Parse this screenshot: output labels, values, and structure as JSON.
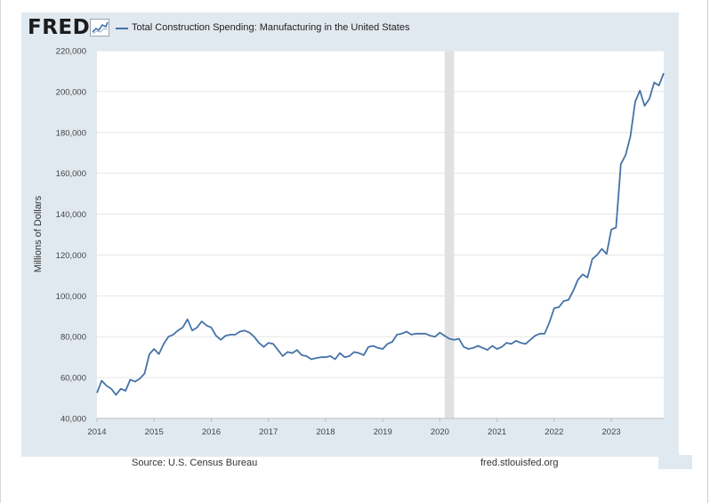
{
  "header": {
    "logo": "FRED",
    "logo_icon": "line-graph-icon",
    "series_title": "Total Construction Spending: Manufacturing in the United States"
  },
  "footer": {
    "source": "Source: U.S. Census Bureau",
    "site": "fred.stlouisfed.org"
  },
  "colors": {
    "line": "#4572a7",
    "panel": "#e1e9f0",
    "recession": "#e1e1e1"
  },
  "chart_data": {
    "type": "line",
    "title": "Total Construction Spending: Manufacturing in the United States",
    "xlabel": "",
    "ylabel": "Millions of Dollars",
    "ylim": [
      40000,
      220000
    ],
    "xlim": [
      2014.0,
      2023.917
    ],
    "grid": true,
    "yticks": [
      40000,
      60000,
      80000,
      100000,
      120000,
      140000,
      160000,
      180000,
      200000,
      220000
    ],
    "ytick_labels": [
      "40,000",
      "60,000",
      "80,000",
      "100,000",
      "120,000",
      "140,000",
      "160,000",
      "180,000",
      "200,000",
      "220,000"
    ],
    "xticks": [
      2014,
      2015,
      2016,
      2017,
      2018,
      2019,
      2020,
      2021,
      2022,
      2023
    ],
    "xtick_labels": [
      "2014",
      "2015",
      "2016",
      "2017",
      "2018",
      "2019",
      "2020",
      "2021",
      "2022",
      "2023"
    ],
    "recession": [
      2020.0833,
      2020.25
    ],
    "series": [
      {
        "name": "Total Construction Spending: Manufacturing in the United States",
        "x": [
          2014.0,
          2014.083,
          2014.167,
          2014.25,
          2014.333,
          2014.417,
          2014.5,
          2014.583,
          2014.667,
          2014.75,
          2014.833,
          2014.917,
          2015.0,
          2015.083,
          2015.167,
          2015.25,
          2015.333,
          2015.417,
          2015.5,
          2015.583,
          2015.667,
          2015.75,
          2015.833,
          2015.917,
          2016.0,
          2016.083,
          2016.167,
          2016.25,
          2016.333,
          2016.417,
          2016.5,
          2016.583,
          2016.667,
          2016.75,
          2016.833,
          2016.917,
          2017.0,
          2017.083,
          2017.167,
          2017.25,
          2017.333,
          2017.417,
          2017.5,
          2017.583,
          2017.667,
          2017.75,
          2017.833,
          2017.917,
          2018.0,
          2018.083,
          2018.167,
          2018.25,
          2018.333,
          2018.417,
          2018.5,
          2018.583,
          2018.667,
          2018.75,
          2018.833,
          2018.917,
          2019.0,
          2019.083,
          2019.167,
          2019.25,
          2019.333,
          2019.417,
          2019.5,
          2019.583,
          2019.667,
          2019.75,
          2019.833,
          2019.917,
          2020.0,
          2020.083,
          2020.167,
          2020.25,
          2020.333,
          2020.417,
          2020.5,
          2020.583,
          2020.667,
          2020.75,
          2020.833,
          2020.917,
          2021.0,
          2021.083,
          2021.167,
          2021.25,
          2021.333,
          2021.417,
          2021.5,
          2021.583,
          2021.667,
          2021.75,
          2021.833,
          2021.917,
          2022.0,
          2022.083,
          2022.167,
          2022.25,
          2022.333,
          2022.417,
          2022.5,
          2022.583,
          2022.667,
          2022.75,
          2022.833,
          2022.917,
          2023.0,
          2023.083,
          2023.167,
          2023.25,
          2023.333,
          2023.417,
          2023.5,
          2023.583,
          2023.667,
          2023.75,
          2023.833,
          2023.917
        ],
        "values": [
          52500,
          58500,
          56000,
          54500,
          51500,
          54500,
          53500,
          59000,
          58000,
          59500,
          62000,
          71500,
          74000,
          71500,
          76500,
          80000,
          81000,
          83000,
          84500,
          88500,
          83000,
          84500,
          87500,
          85500,
          84500,
          80500,
          78500,
          80500,
          81000,
          81000,
          82500,
          83000,
          82000,
          80000,
          77000,
          75000,
          77000,
          76500,
          73500,
          70500,
          72500,
          72000,
          73500,
          71000,
          70500,
          69000,
          69500,
          70000,
          70000,
          70500,
          69000,
          72000,
          70000,
          70500,
          72500,
          72000,
          71000,
          75000,
          75500,
          74500,
          74000,
          76500,
          77500,
          81000,
          81500,
          82500,
          81000,
          81500,
          81500,
          81500,
          80500,
          80000,
          82000,
          80500,
          79000,
          78500,
          79000,
          75000,
          74000,
          74500,
          75500,
          74500,
          73500,
          75500,
          74000,
          75000,
          77000,
          76500,
          78000,
          77000,
          76500,
          78500,
          80500,
          81500,
          81500,
          87000,
          94000,
          94500,
          97500,
          98000,
          102500,
          108000,
          110500,
          109000,
          118000,
          120000,
          123000,
          120500,
          132500,
          133500,
          164500,
          169000,
          178000,
          195000,
          200500,
          193000,
          196500,
          204500,
          203000,
          209000
        ]
      }
    ]
  }
}
